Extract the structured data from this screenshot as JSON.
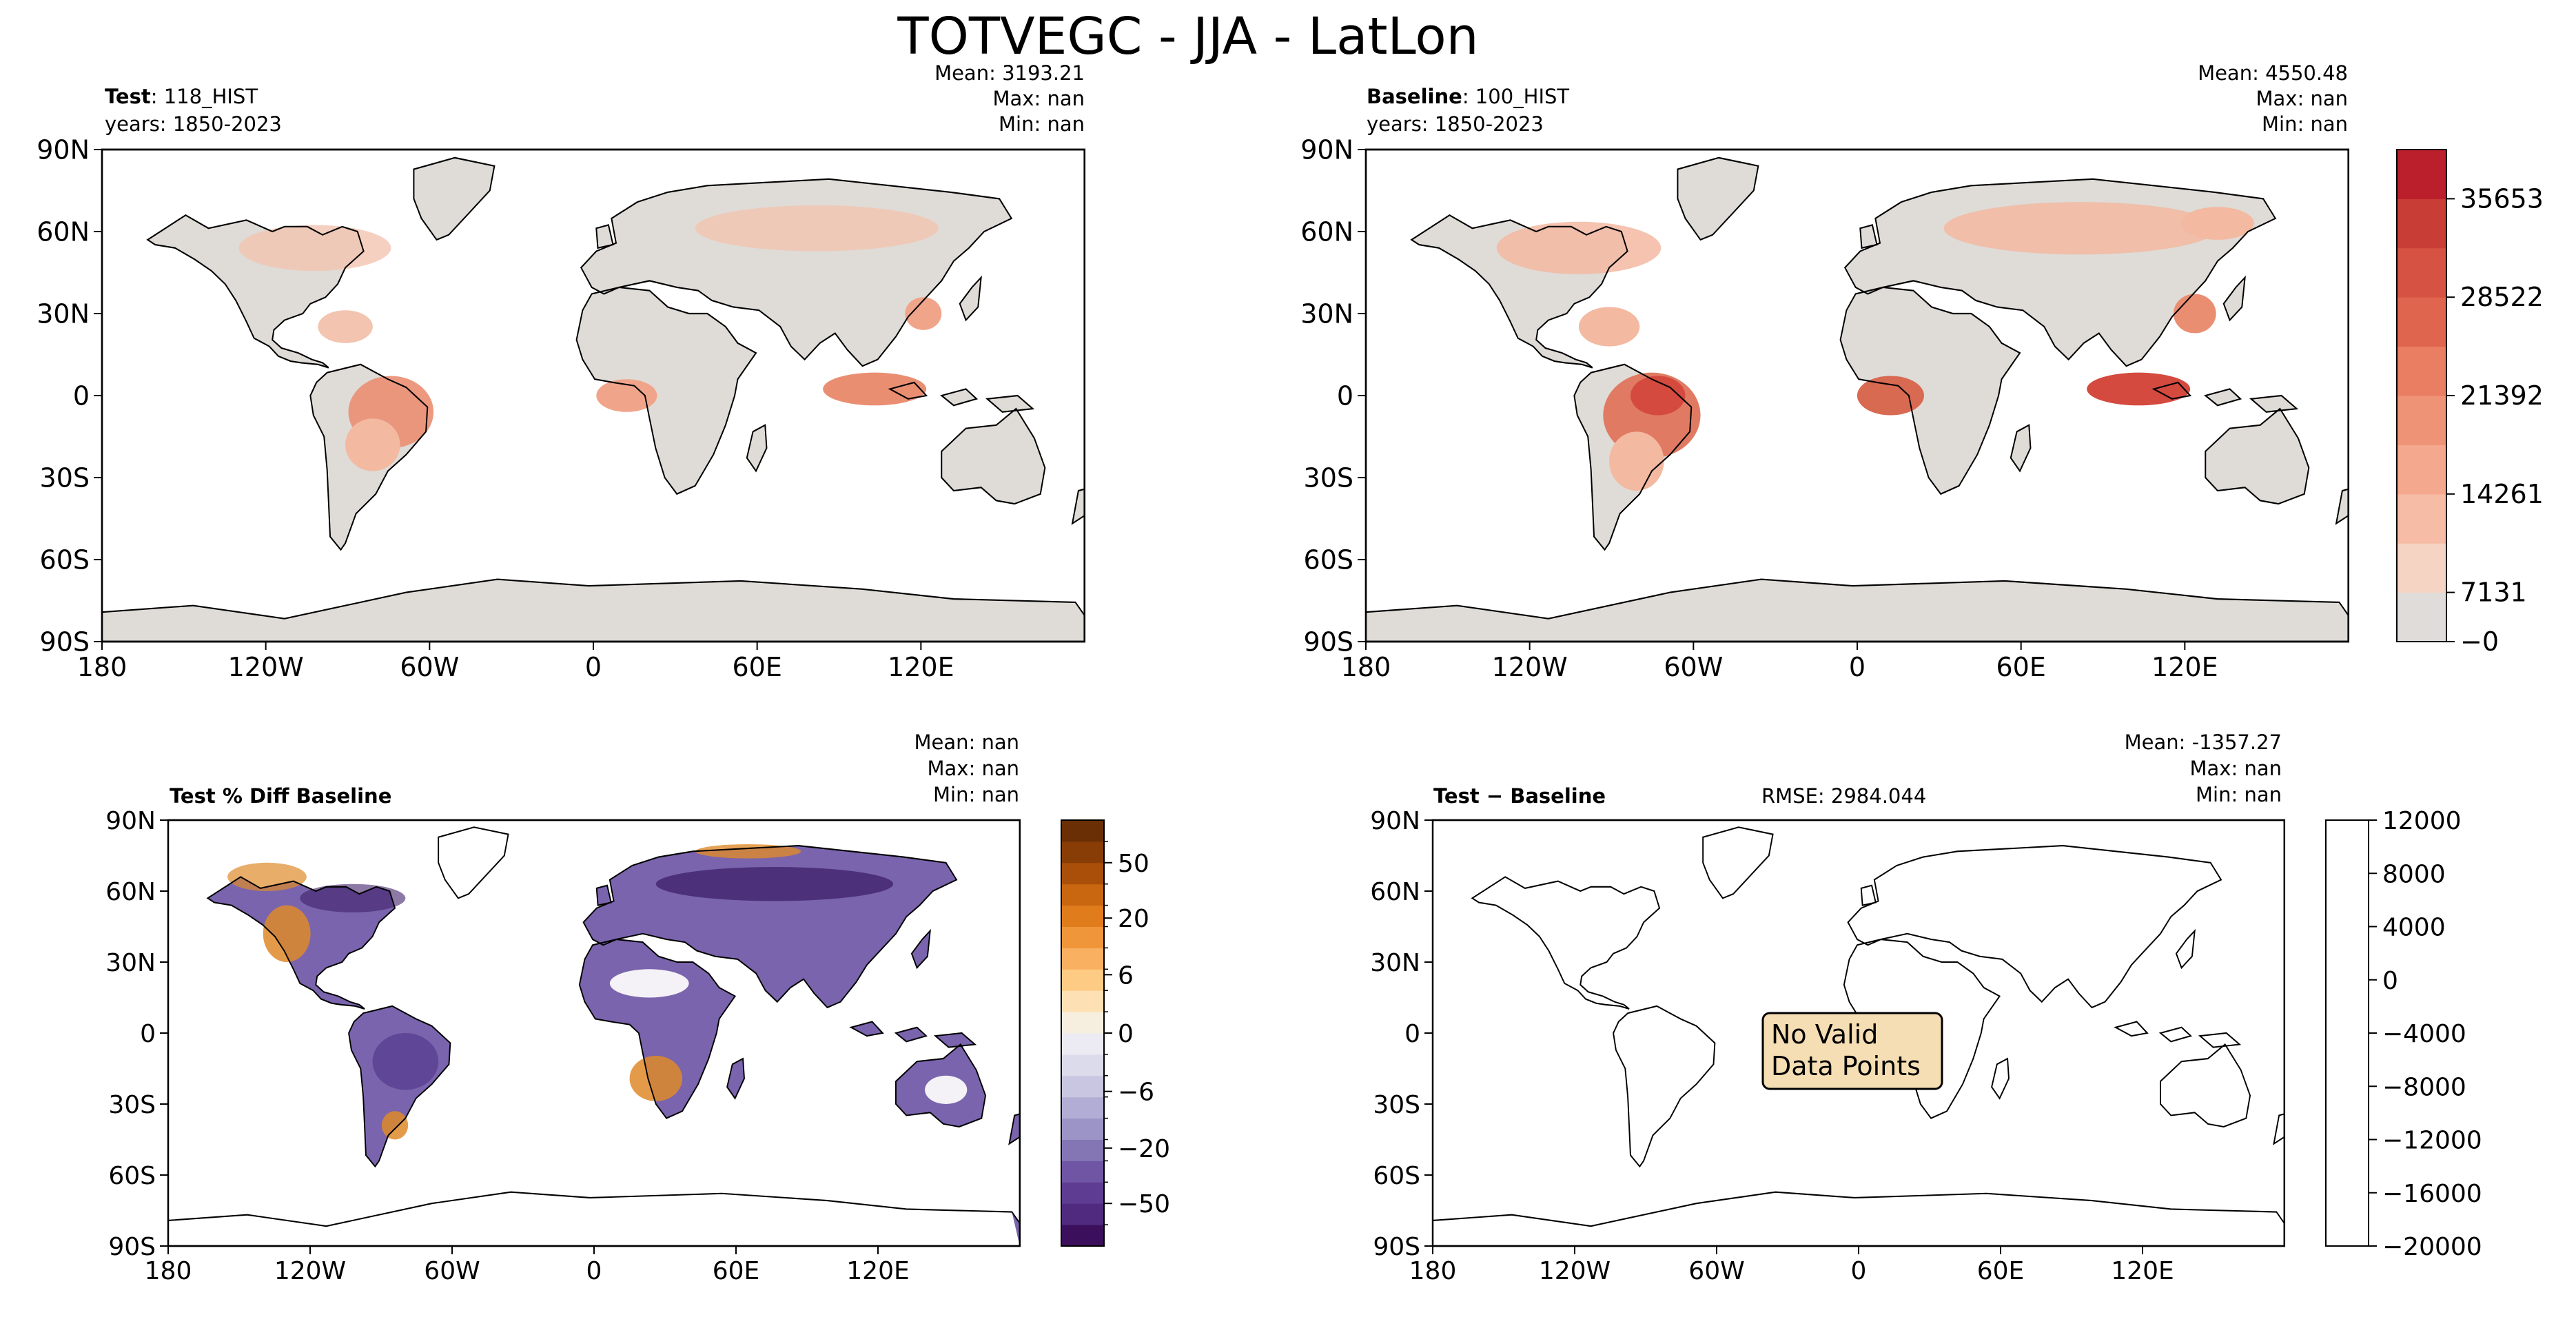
{
  "title": "TOTVEGC - JJA - LatLon",
  "panels": {
    "test": {
      "label_bold": "Test",
      "label_rest": ": 118_HIST",
      "years": "years: 1850-2023",
      "mean": "Mean: 3193.21",
      "max": "Max:   nan",
      "min": "Min:   nan"
    },
    "baseline": {
      "label_bold": "Baseline",
      "label_rest": ": 100_HIST",
      "years": "years: 1850-2023",
      "mean": "Mean: 4550.48",
      "max": "Max:   nan",
      "min": "Min:   nan"
    },
    "pctdiff": {
      "label_bold": "Test % Diff Baseline",
      "mean": "Mean:   nan",
      "max": "Max:   nan",
      "min": "Min:   nan"
    },
    "diff": {
      "label_bold": "Test − Baseline",
      "rmse": "RMSE: 2984.044",
      "mean": "Mean: -1357.27",
      "max": "Max:   nan",
      "min": "Min:   nan",
      "no_data": [
        "No Valid",
        "Data Points"
      ]
    }
  },
  "axes": {
    "lon_ticks": [
      "180",
      "120W",
      "60W",
      "0",
      "60E",
      "120E"
    ],
    "lat_ticks": [
      "90N",
      "60N",
      "30N",
      "0",
      "30S",
      "60S",
      "90S"
    ]
  },
  "colorbars": {
    "abs": {
      "ticks": [
        "35653",
        "28522",
        "21392",
        "14261",
        "7131",
        "−0"
      ],
      "colors": [
        "#e0dcd9",
        "#f6d4c4",
        "#f7bca5",
        "#f4a88e",
        "#ef9377",
        "#e97e63",
        "#e0654e",
        "#d65343",
        "#c93d37",
        "#bb1f2c"
      ]
    },
    "pctdiff": {
      "ticks": [
        "50",
        "20",
        "6",
        "0",
        "−6",
        "−20",
        "−50"
      ],
      "colors": [
        "#3b0f5c",
        "#4f2a7e",
        "#5e3c92",
        "#6f55a3",
        "#8476b5",
        "#9c93c6",
        "#b2add4",
        "#c9c6e1",
        "#dcdbeb",
        "#eceaf2",
        "#f6eedf",
        "#fde1b4",
        "#fdcb84",
        "#f9b060",
        "#ef963a",
        "#e17c1c",
        "#c8670f",
        "#a94f09",
        "#883d07",
        "#6b2f05"
      ]
    },
    "diff": {
      "ticks": [
        "12000",
        "8000",
        "4000",
        "0",
        "−4000",
        "−8000",
        "−12000",
        "−16000",
        "−20000"
      ]
    }
  },
  "colors": {
    "land_gray": "#dfdbd7",
    "veg_low": "#f3b9a1",
    "veg_mid": "#ea8e72",
    "veg_high": "#d44a3f",
    "diff_purple": "#7a64ad",
    "diff_dark": "#3f1f6a",
    "diff_orange": "#de8a2a",
    "box_fill": "#f6deb4"
  }
}
